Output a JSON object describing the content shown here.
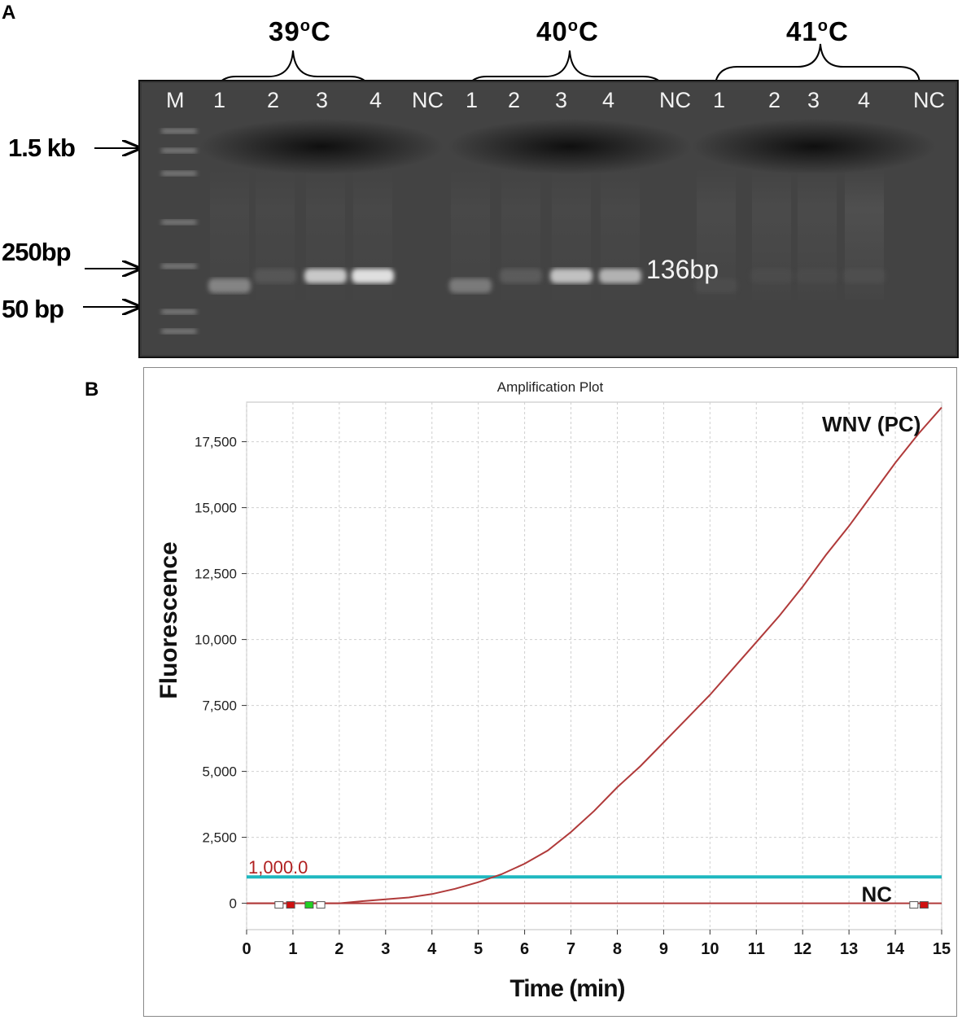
{
  "figure": {
    "panel_a_label": "A",
    "panel_b_label": "B"
  },
  "gel": {
    "marker_label": "M",
    "groups": [
      {
        "label": "39°C",
        "base": "39",
        "sup": "o",
        "unit": "C",
        "lanes": [
          "1",
          "2",
          "3",
          "4"
        ],
        "nc": "NC"
      },
      {
        "label": "40°C",
        "base": "40",
        "sup": "o",
        "unit": "C",
        "lanes": [
          "1",
          "2",
          "3",
          "4"
        ],
        "nc": "NC"
      },
      {
        "label": "41°C",
        "base": "41",
        "sup": "o",
        "unit": "C",
        "lanes": [
          "1",
          "2",
          "3",
          "4"
        ],
        "nc": "NC"
      }
    ],
    "size_labels": [
      "1.5 kb",
      "250bp",
      "50 bp"
    ],
    "band_label": "136bp",
    "band_intensity": {
      "39": [
        0.45,
        0.15,
        0.8,
        0.95
      ],
      "40": [
        0.4,
        0.2,
        0.75,
        0.65
      ],
      "41": [
        0.05,
        0.03,
        0.02,
        0.06
      ]
    }
  },
  "chart_data": {
    "type": "line",
    "title": "Amplification Plot",
    "xlabel": "Time (min)",
    "ylabel": "Fluorescence",
    "xlim": [
      0,
      15
    ],
    "ylim": [
      -1000,
      19000
    ],
    "xticks": [
      0,
      1,
      2,
      3,
      4,
      5,
      6,
      7,
      8,
      9,
      10,
      11,
      12,
      13,
      14,
      15
    ],
    "xtick_labels": [
      "0",
      "1",
      "2",
      "3",
      "4",
      "5",
      "6",
      "7",
      "8",
      "9",
      "10",
      "11",
      "12",
      "13",
      "14",
      "15"
    ],
    "yticks": [
      0,
      2500,
      5000,
      7500,
      10000,
      12500,
      15000,
      17500
    ],
    "ytick_labels": [
      "0",
      "2,500",
      "5,000",
      "7,500",
      "10,000",
      "12,500",
      "15,000",
      "17,500"
    ],
    "grid": true,
    "threshold": {
      "value": 1000,
      "label": "1,000.0",
      "color": "#1fb8c0"
    },
    "series": [
      {
        "name": "WNV (PC)",
        "color": "#b03a3a",
        "x": [
          0,
          0.5,
          1,
          1.5,
          2,
          2.5,
          3,
          3.5,
          4,
          4.5,
          5,
          5.5,
          6,
          6.5,
          7,
          7.5,
          8,
          8.5,
          9,
          9.5,
          10,
          10.5,
          11,
          11.5,
          12,
          12.5,
          13,
          13.5,
          14,
          14.5,
          15
        ],
        "y": [
          0,
          0,
          0,
          0,
          0,
          80,
          150,
          220,
          350,
          550,
          800,
          1100,
          1500,
          2000,
          2700,
          3500,
          4400,
          5200,
          6100,
          7000,
          7900,
          8900,
          9900,
          10900,
          12000,
          13200,
          14300,
          15500,
          16700,
          17800,
          18800
        ]
      },
      {
        "name": "NC",
        "color": "#b03a3a",
        "x": [
          0,
          1,
          2,
          3,
          4,
          5,
          6,
          7,
          8,
          9,
          10,
          11,
          12,
          13,
          14,
          15
        ],
        "y": [
          0,
          0,
          0,
          0,
          0,
          0,
          0,
          0,
          0,
          0,
          0,
          0,
          0,
          0,
          0,
          0
        ]
      }
    ]
  }
}
